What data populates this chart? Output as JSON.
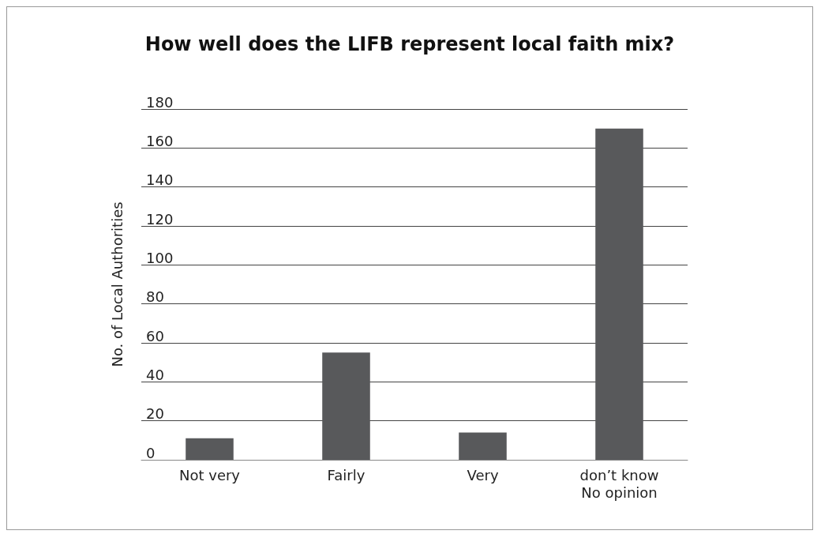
{
  "chart_data": {
    "type": "bar",
    "title": "How well does the LIFB represent local faith mix?",
    "ylabel": "No. of Local Authorities",
    "categories": [
      "Not very",
      "Fairly",
      "Very",
      "don’t know\nNo opinion"
    ],
    "values": [
      11,
      55,
      14,
      170
    ],
    "color": "#58595b",
    "ylim": [
      0,
      180
    ],
    "yticks": [
      0,
      20,
      40,
      60,
      80,
      100,
      120,
      140,
      160,
      180
    ],
    "grid": "y"
  }
}
